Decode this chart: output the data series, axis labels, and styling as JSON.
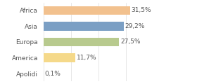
{
  "categories": [
    "Africa",
    "Asia",
    "Europa",
    "America",
    "Apolidi"
  ],
  "values": [
    31.5,
    29.2,
    27.5,
    11.7,
    0.1
  ],
  "labels": [
    "31,5%",
    "29,2%",
    "27,5%",
    "11,7%",
    "0,1%"
  ],
  "bar_colors": [
    "#f2c18e",
    "#7b9fc4",
    "#b8ca8e",
    "#f5d98a",
    "#f2c18e"
  ],
  "background_color": "#ffffff",
  "label_fontsize": 6.5,
  "tick_fontsize": 6.5,
  "xlim": [
    0,
    40
  ],
  "bar_height": 0.55,
  "label_color": "#555555",
  "tick_color": "#555555",
  "grid_color": "#dddddd"
}
